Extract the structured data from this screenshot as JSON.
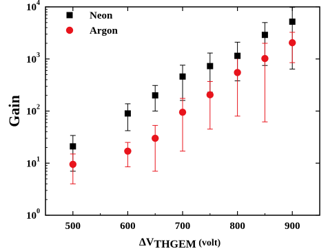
{
  "chart_data": {
    "type": "scatter",
    "xlabel_prefix": "ΔV",
    "xlabel_sub": "THGEM",
    "xlabel_suffix": " (volt)",
    "ylabel": "Gain",
    "xlim": [
      450,
      950
    ],
    "ylim": [
      1,
      10000
    ],
    "yscale": "log",
    "xticks": [
      500,
      600,
      700,
      800,
      900
    ],
    "yticks": [
      {
        "value": 1,
        "base": "10",
        "exp": "0"
      },
      {
        "value": 10,
        "base": "10",
        "exp": "1"
      },
      {
        "value": 100,
        "base": "10",
        "exp": "2"
      },
      {
        "value": 1000,
        "base": "10",
        "exp": "3"
      },
      {
        "value": 10000,
        "base": "10",
        "exp": "4"
      }
    ],
    "legend_position": "top-left",
    "series": [
      {
        "name": "Neon",
        "marker": "square",
        "color": "#000000",
        "points": [
          {
            "x": 500,
            "y": 21,
            "ylow": 7,
            "yhigh": 34
          },
          {
            "x": 600,
            "y": 90,
            "ylow": 42,
            "yhigh": 138
          },
          {
            "x": 650,
            "y": 200,
            "ylow": 100,
            "yhigh": 310
          },
          {
            "x": 700,
            "y": 460,
            "ylow": 160,
            "yhigh": 760
          },
          {
            "x": 750,
            "y": 730,
            "ylow": 230,
            "yhigh": 1300
          },
          {
            "x": 800,
            "y": 1150,
            "ylow": 380,
            "yhigh": 2100
          },
          {
            "x": 850,
            "y": 2900,
            "ylow": 750,
            "yhigh": 5000
          },
          {
            "x": 900,
            "y": 5200,
            "ylow": 640,
            "yhigh": 9800
          }
        ]
      },
      {
        "name": "Argon",
        "marker": "circle",
        "color": "#e8141c",
        "points": [
          {
            "x": 500,
            "y": 9.5,
            "ylow": 4,
            "yhigh": 15
          },
          {
            "x": 600,
            "y": 17,
            "ylow": 8.5,
            "yhigh": 25
          },
          {
            "x": 650,
            "y": 30,
            "ylow": 7,
            "yhigh": 53
          },
          {
            "x": 700,
            "y": 95,
            "ylow": 17,
            "yhigh": 175
          },
          {
            "x": 750,
            "y": 205,
            "ylow": 45,
            "yhigh": 370
          },
          {
            "x": 800,
            "y": 550,
            "ylow": 80,
            "yhigh": 1020
          },
          {
            "x": 850,
            "y": 1020,
            "ylow": 62,
            "yhigh": 2000
          },
          {
            "x": 900,
            "y": 2050,
            "ylow": 850,
            "yhigh": 3250
          }
        ]
      }
    ]
  }
}
